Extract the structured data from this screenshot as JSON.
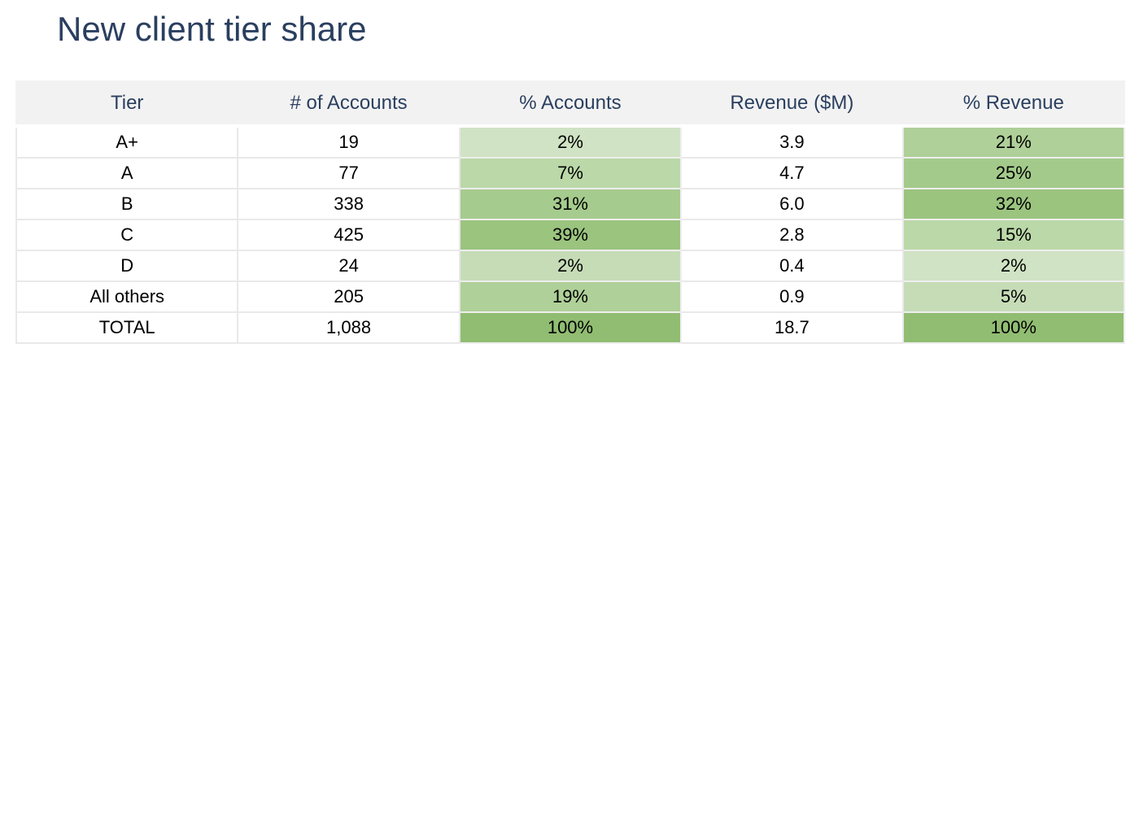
{
  "title": "New client tier share",
  "chart_data": {
    "type": "table",
    "title": "New client tier share",
    "columns": [
      "Tier",
      "# of Accounts",
      "% Accounts",
      "Revenue ($M)",
      "% Revenue"
    ],
    "rows": [
      [
        "A+",
        "19",
        "2%",
        "3.9",
        "21%"
      ],
      [
        "A",
        "77",
        "7%",
        "4.7",
        "25%"
      ],
      [
        "B",
        "338",
        "31%",
        "6.0",
        "32%"
      ],
      [
        "C",
        "425",
        "39%",
        "2.8",
        "15%"
      ],
      [
        "D",
        "24",
        "2%",
        "0.4",
        "2%"
      ],
      [
        "All others",
        "205",
        "19%",
        "0.9",
        "5%"
      ],
      [
        "TOTAL",
        "1,088",
        "100%",
        "18.7",
        "100%"
      ]
    ],
    "cell_colors": {
      "% Accounts": [
        "#d0e3c4",
        "#bbd8a8",
        "#a6cb8e",
        "#9bc47f",
        "#c6dcb7",
        "#afd098",
        "#91bd72"
      ],
      "% Revenue": [
        "#afd098",
        "#a3ca8b",
        "#9bc47f",
        "#bbd8a8",
        "#d0e3c4",
        "#c6dcb7",
        "#91bd72"
      ]
    },
    "header_color": "#f2f2f2",
    "header_text_color": "#2a3f5f"
  }
}
